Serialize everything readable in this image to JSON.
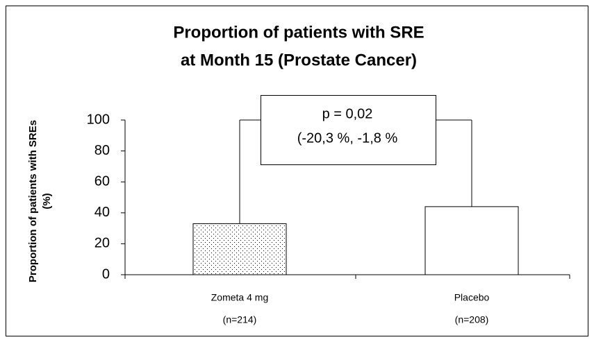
{
  "chart_data": {
    "type": "bar",
    "title": [
      "Proportion of patients with SRE",
      "at Month 15 (Prostate Cancer)"
    ],
    "y_label": [
      "Proportion of patients with SREs",
      "(%)"
    ],
    "categories": [
      [
        "Zometa 4 mg",
        "(n=214)"
      ],
      [
        "Placebo",
        "(n=208)"
      ]
    ],
    "values": [
      33,
      44
    ],
    "color": "#ffffff",
    "annotation": [
      "p = 0,02",
      "(-20,3 %, -1,8 %"
    ],
    "ylim": [
      0,
      100
    ],
    "yticks": [
      0,
      20,
      40,
      60,
      80,
      100
    ],
    "grid": false
  }
}
